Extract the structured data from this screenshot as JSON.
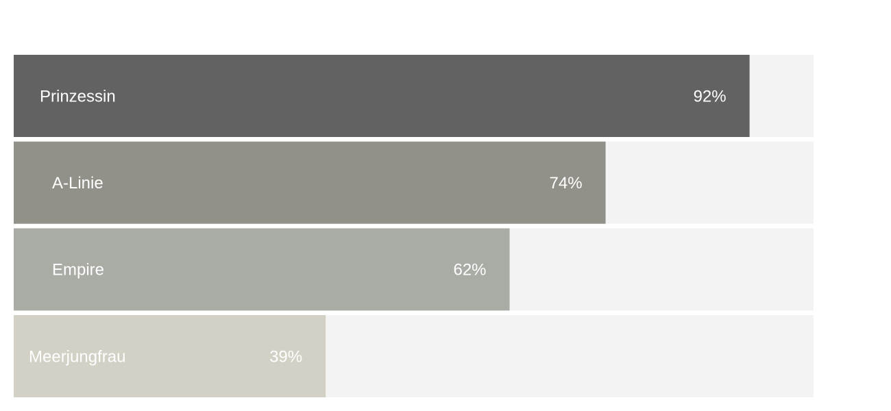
{
  "chart_data": {
    "type": "bar",
    "orientation": "horizontal",
    "title": "",
    "xlabel": "",
    "ylabel": "",
    "xlim": [
      0,
      100
    ],
    "grid": false,
    "legend": "none",
    "value_suffix": "%",
    "categories": [
      "Prinzessin",
      "A-Linie",
      "Empire",
      "Meerjungfrau"
    ],
    "values": [
      92,
      74,
      62,
      39
    ],
    "colors": [
      "#626262",
      "#929189",
      "#a9aca5",
      "#d3d1c5"
    ],
    "track_color": "#f3f3f3"
  }
}
